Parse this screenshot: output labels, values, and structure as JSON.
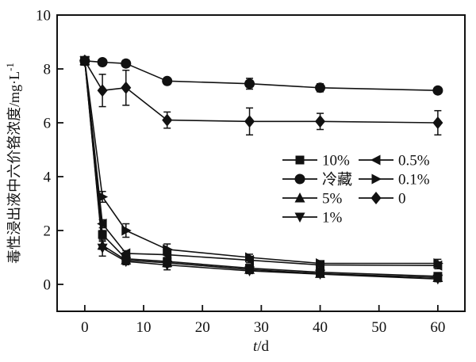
{
  "figure": {
    "background": "#ffffff",
    "ink": "#111111"
  },
  "chart_data": {
    "type": "line",
    "title": "",
    "xlabel": {
      "text": "t/d",
      "italic_part": "t",
      "rest": "/d"
    },
    "ylabel": {
      "text": "毒性浸出液中六价铬浓度/mg·L⁻¹",
      "base": "毒性浸出液中六价铬浓度/mg·L",
      "superscript": "-1"
    },
    "x": [
      0,
      3,
      7,
      14,
      28,
      40,
      60
    ],
    "xlim": [
      -4.7,
      64.6
    ],
    "ylim": [
      -1,
      10
    ],
    "x_ticks": [
      0,
      10,
      20,
      30,
      40,
      50,
      60
    ],
    "y_ticks": [
      0,
      2,
      4,
      6,
      8,
      10
    ],
    "grid": false,
    "legend": {
      "position": "inside-middle-right",
      "columns": [
        [
          "10%",
          "冷藏",
          "5%",
          "1%"
        ],
        [
          "0.5%",
          "0.1%",
          "0"
        ]
      ]
    },
    "series": [
      {
        "name": "10%",
        "marker": "square",
        "values": [
          8.3,
          1.85,
          0.95,
          0.85,
          0.6,
          0.45,
          0.3
        ],
        "errors": [
          0.15,
          0.15,
          0.1,
          0.15,
          0.1,
          0.08,
          0.1
        ]
      },
      {
        "name": "冷藏",
        "marker": "circle",
        "values": [
          8.3,
          8.25,
          8.2,
          7.55,
          7.45,
          7.3,
          7.2
        ],
        "errors": [
          0.15,
          0.1,
          0.12,
          0.12,
          0.2,
          0.15,
          0.1
        ]
      },
      {
        "name": "5%",
        "marker": "triangle-up",
        "values": [
          8.3,
          1.45,
          0.9,
          0.8,
          0.55,
          0.4,
          0.25
        ],
        "errors": [
          0.15,
          0.15,
          0.1,
          0.15,
          0.1,
          0.08,
          0.1
        ]
      },
      {
        "name": "1%",
        "marker": "triangle-down",
        "values": [
          8.3,
          1.35,
          0.85,
          0.72,
          0.5,
          0.38,
          0.2
        ],
        "errors": [
          0.15,
          0.3,
          0.12,
          0.18,
          0.1,
          0.08,
          0.1
        ]
      },
      {
        "name": "0.5%",
        "marker": "triangle-left",
        "values": [
          8.3,
          2.25,
          1.15,
          1.1,
          0.9,
          0.72,
          0.7
        ],
        "errors": [
          0.15,
          0.15,
          0.1,
          0.15,
          0.1,
          0.1,
          0.12
        ]
      },
      {
        "name": "0.1%",
        "marker": "triangle-right",
        "values": [
          8.3,
          3.25,
          2.0,
          1.3,
          1.0,
          0.78,
          0.78
        ],
        "errors": [
          0.15,
          0.2,
          0.25,
          0.2,
          0.12,
          0.1,
          0.15
        ]
      },
      {
        "name": "0",
        "marker": "diamond",
        "values": [
          8.3,
          7.2,
          7.3,
          6.1,
          6.05,
          6.05,
          6.0
        ],
        "errors": [
          0.15,
          0.6,
          0.65,
          0.3,
          0.5,
          0.3,
          0.45
        ]
      }
    ]
  }
}
